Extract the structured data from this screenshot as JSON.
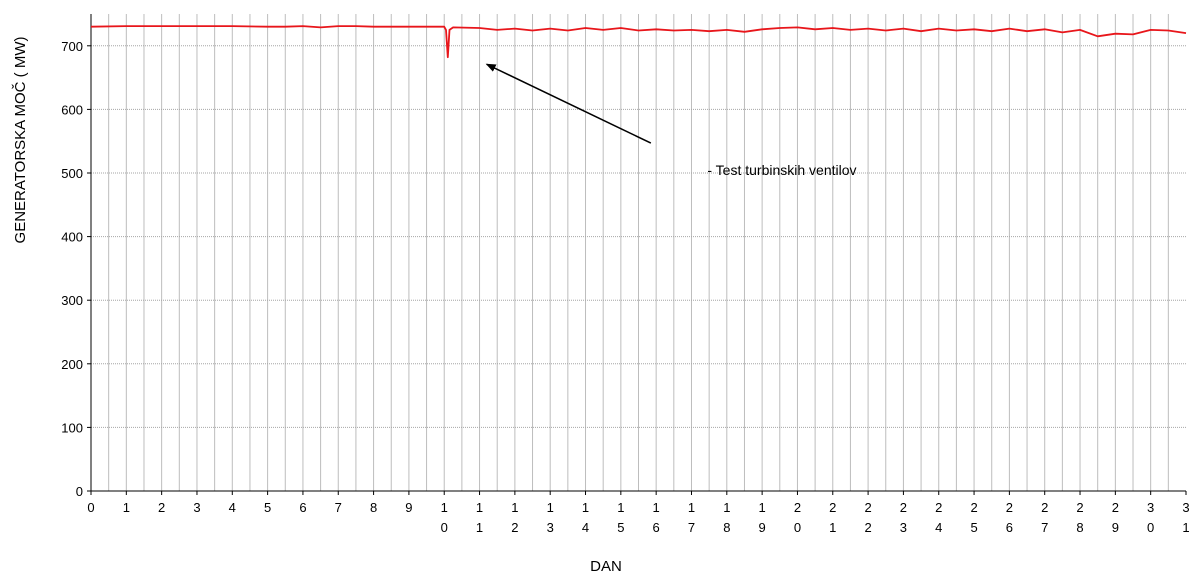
{
  "chart_data": {
    "type": "line",
    "title": "",
    "xlabel": "DAN",
    "ylabel": "GENERATORSKA MOČ  ( MW)",
    "xlim": [
      0,
      31
    ],
    "ylim": [
      0,
      750
    ],
    "yticks": [
      0,
      100,
      200,
      300,
      400,
      500,
      600,
      700
    ],
    "xtick_labels": [
      [
        "0"
      ],
      [
        "1"
      ],
      [
        "2"
      ],
      [
        "3"
      ],
      [
        "4"
      ],
      [
        "5"
      ],
      [
        "6"
      ],
      [
        "7"
      ],
      [
        "8"
      ],
      [
        "9"
      ],
      [
        "1",
        "0"
      ],
      [
        "1",
        "1"
      ],
      [
        "1",
        "2"
      ],
      [
        "1",
        "3"
      ],
      [
        "1",
        "4"
      ],
      [
        "1",
        "5"
      ],
      [
        "1",
        "6"
      ],
      [
        "1",
        "7"
      ],
      [
        "1",
        "8"
      ],
      [
        "1",
        "9"
      ],
      [
        "2",
        "0"
      ],
      [
        "2",
        "1"
      ],
      [
        "2",
        "2"
      ],
      [
        "2",
        "3"
      ],
      [
        "2",
        "4"
      ],
      [
        "2",
        "5"
      ],
      [
        "2",
        "6"
      ],
      [
        "2",
        "7"
      ],
      [
        "2",
        "8"
      ],
      [
        "2",
        "9"
      ],
      [
        "3",
        "0"
      ],
      [
        "3",
        "1"
      ]
    ],
    "grid": true,
    "line_color": "#e8161b",
    "series": [
      {
        "values": [
          [
            0,
            730
          ],
          [
            1,
            731
          ],
          [
            2,
            731
          ],
          [
            3,
            731
          ],
          [
            4,
            731
          ],
          [
            5,
            730
          ],
          [
            5.5,
            730
          ],
          [
            6,
            731
          ],
          [
            6.5,
            729
          ],
          [
            7,
            731
          ],
          [
            7.5,
            731
          ],
          [
            8,
            730
          ],
          [
            9,
            730
          ],
          [
            10,
            730
          ],
          [
            10.05,
            725
          ],
          [
            10.1,
            682
          ],
          [
            10.15,
            725
          ],
          [
            10.25,
            729
          ],
          [
            11,
            728
          ],
          [
            11.5,
            725
          ],
          [
            12,
            727
          ],
          [
            12.5,
            724
          ],
          [
            13,
            727
          ],
          [
            13.5,
            724
          ],
          [
            14,
            728
          ],
          [
            14.5,
            725
          ],
          [
            15,
            728
          ],
          [
            15.5,
            724
          ],
          [
            16,
            726
          ],
          [
            16.5,
            724
          ],
          [
            17,
            725
          ],
          [
            17.5,
            723
          ],
          [
            18,
            725
          ],
          [
            18.5,
            722
          ],
          [
            19,
            726
          ],
          [
            19.5,
            728
          ],
          [
            20,
            729
          ],
          [
            20.5,
            726
          ],
          [
            21,
            728
          ],
          [
            21.5,
            725
          ],
          [
            22,
            727
          ],
          [
            22.5,
            724
          ],
          [
            23,
            727
          ],
          [
            23.5,
            723
          ],
          [
            24,
            727
          ],
          [
            24.5,
            724
          ],
          [
            25,
            726
          ],
          [
            25.5,
            723
          ],
          [
            26,
            727
          ],
          [
            26.5,
            723
          ],
          [
            27,
            726
          ],
          [
            27.5,
            721
          ],
          [
            28,
            725
          ],
          [
            28.5,
            715
          ],
          [
            29,
            719
          ],
          [
            29.5,
            718
          ],
          [
            30,
            725
          ],
          [
            30.5,
            724
          ],
          [
            31,
            720
          ]
        ]
      }
    ],
    "annotations": [
      {
        "text": "- Test turbinskih  ventilov",
        "x": 17.45,
        "y": 497,
        "arrow_from": [
          15.85,
          547
        ],
        "arrow_to": [
          11.2,
          671
        ]
      }
    ]
  }
}
